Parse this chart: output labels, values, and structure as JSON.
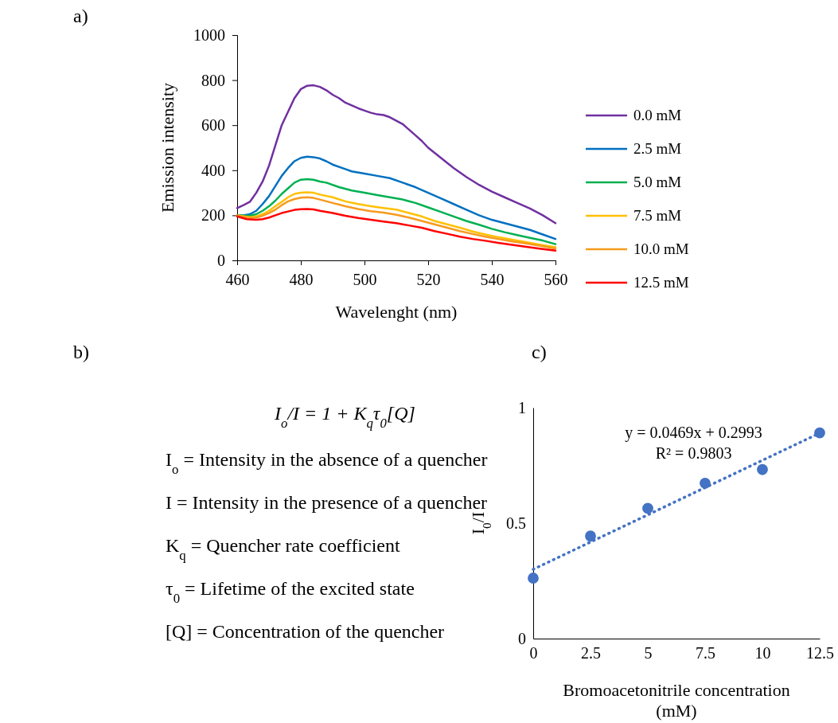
{
  "chart_data": [
    {
      "type": "line",
      "title": "a)",
      "xlabel": "Wavelenght (nm)",
      "ylabel": "Emission intensity",
      "xlim": [
        460,
        560
      ],
      "xticks": [
        460,
        480,
        500,
        520,
        540,
        560
      ],
      "ylim": [
        0,
        1000
      ],
      "yticks": [
        0,
        200,
        400,
        600,
        800,
        1000
      ],
      "legend": "right",
      "series": [
        {
          "name": "0.0 mM",
          "color": "#7030a0",
          "x": [
            460,
            462,
            464,
            466,
            468,
            470,
            472,
            474,
            476,
            478,
            480,
            482,
            484,
            486,
            488,
            490,
            492,
            494,
            496,
            498,
            500,
            502,
            504,
            506,
            508,
            510,
            512,
            514,
            516,
            518,
            520,
            524,
            528,
            532,
            536,
            540,
            544,
            548,
            552,
            556,
            560
          ],
          "values": [
            232,
            245,
            260,
            300,
            350,
            420,
            510,
            600,
            660,
            720,
            760,
            775,
            777,
            770,
            755,
            735,
            720,
            700,
            688,
            675,
            665,
            655,
            648,
            645,
            635,
            620,
            605,
            580,
            555,
            530,
            500,
            455,
            410,
            370,
            335,
            305,
            280,
            255,
            230,
            200,
            165
          ]
        },
        {
          "name": "2.5 mM",
          "color": "#0070c0",
          "x": [
            460,
            462,
            464,
            466,
            468,
            470,
            472,
            474,
            476,
            478,
            480,
            482,
            484,
            486,
            488,
            490,
            494,
            496,
            500,
            504,
            508,
            512,
            516,
            520,
            524,
            528,
            532,
            536,
            540,
            544,
            548,
            552,
            556,
            560
          ],
          "values": [
            200,
            200,
            205,
            220,
            250,
            285,
            330,
            375,
            410,
            440,
            455,
            460,
            458,
            452,
            440,
            425,
            405,
            395,
            385,
            375,
            365,
            345,
            325,
            300,
            275,
            250,
            225,
            200,
            180,
            165,
            150,
            135,
            115,
            95
          ]
        },
        {
          "name": "5.0 mM",
          "color": "#00b050",
          "x": [
            460,
            464,
            466,
            468,
            470,
            472,
            474,
            476,
            478,
            480,
            482,
            484,
            486,
            488,
            492,
            496,
            500,
            504,
            508,
            512,
            516,
            520,
            524,
            528,
            532,
            536,
            540,
            544,
            548,
            552,
            556,
            560
          ],
          "values": [
            200,
            198,
            205,
            220,
            240,
            265,
            295,
            320,
            345,
            358,
            360,
            358,
            350,
            345,
            325,
            310,
            300,
            290,
            280,
            270,
            255,
            235,
            215,
            195,
            175,
            158,
            140,
            125,
            112,
            100,
            88,
            72
          ]
        },
        {
          "name": "7.5 mM",
          "color": "#ffc000",
          "x": [
            460,
            464,
            466,
            468,
            470,
            472,
            474,
            476,
            478,
            480,
            482,
            484,
            486,
            490,
            494,
            498,
            502,
            506,
            510,
            514,
            518,
            522,
            526,
            530,
            534,
            538,
            542,
            546,
            550,
            555,
            560
          ],
          "values": [
            200,
            192,
            195,
            205,
            220,
            240,
            260,
            280,
            295,
            300,
            302,
            300,
            292,
            280,
            262,
            250,
            240,
            232,
            225,
            210,
            195,
            175,
            160,
            145,
            128,
            115,
            103,
            93,
            83,
            70,
            58
          ]
        },
        {
          "name": "10.0 mM",
          "color": "#f79a1e",
          "x": [
            460,
            464,
            466,
            468,
            470,
            472,
            474,
            476,
            478,
            480,
            482,
            484,
            486,
            490,
            494,
            498,
            502,
            506,
            510,
            514,
            518,
            522,
            526,
            530,
            534,
            538,
            542,
            546,
            550,
            555,
            560
          ],
          "values": [
            198,
            188,
            190,
            198,
            210,
            225,
            245,
            262,
            272,
            278,
            280,
            277,
            270,
            255,
            240,
            228,
            218,
            212,
            202,
            190,
            175,
            160,
            145,
            130,
            117,
            105,
            95,
            85,
            77,
            65,
            52
          ]
        },
        {
          "name": "12.5 mM",
          "color": "#ff0000",
          "x": [
            460,
            463,
            466,
            468,
            470,
            472,
            474,
            476,
            478,
            480,
            482,
            484,
            486,
            490,
            494,
            498,
            502,
            506,
            510,
            514,
            518,
            522,
            526,
            530,
            534,
            538,
            542,
            546,
            550,
            555,
            560
          ],
          "values": [
            195,
            183,
            180,
            183,
            190,
            200,
            210,
            217,
            224,
            227,
            228,
            226,
            220,
            210,
            198,
            188,
            180,
            172,
            165,
            155,
            145,
            130,
            118,
            105,
            95,
            87,
            78,
            70,
            62,
            52,
            43
          ]
        }
      ]
    },
    {
      "type": "other",
      "title": "b)",
      "annotations": [
        "I$_{o}$/I = 1 + K$_{q}$τ$_{0}$[Q]",
        "I$_{o}$ = Intensity in the absence of a quencher",
        "I = Intensity in the presence of a quencher",
        "K$_{q}$ = Quencher rate coefficient",
        "τ$_{0}$ = Lifetime of the excited state",
        "[Q] = Concentration of the quencher"
      ]
    },
    {
      "type": "scatter",
      "title": "c)",
      "xlabel": "Bromoacetonitrile concentration (mM)",
      "ylabel": "I$_{0}$/I",
      "xlim": [
        0,
        12.5
      ],
      "xticks": [
        0,
        2.5,
        5,
        7.5,
        10,
        12.5
      ],
      "ylim": [
        0,
        1
      ],
      "yticks": [
        0,
        0.5,
        1
      ],
      "annotations": [
        "y = 0.0469x + 0.2993",
        "R² = 0.9803"
      ],
      "series": [
        {
          "marker": "circle",
          "color": "#4472c4",
          "x": [
            0,
            2.5,
            5,
            7.5,
            10,
            12.5
          ],
          "values": [
            0.262,
            0.444,
            0.564,
            0.673,
            0.732,
            0.891
          ]
        },
        {
          "type": "line",
          "line_style": "dotted",
          "color": "#4472c4",
          "x": [
            0,
            12.5
          ],
          "values": [
            0.3,
            0.89
          ]
        }
      ]
    }
  ]
}
